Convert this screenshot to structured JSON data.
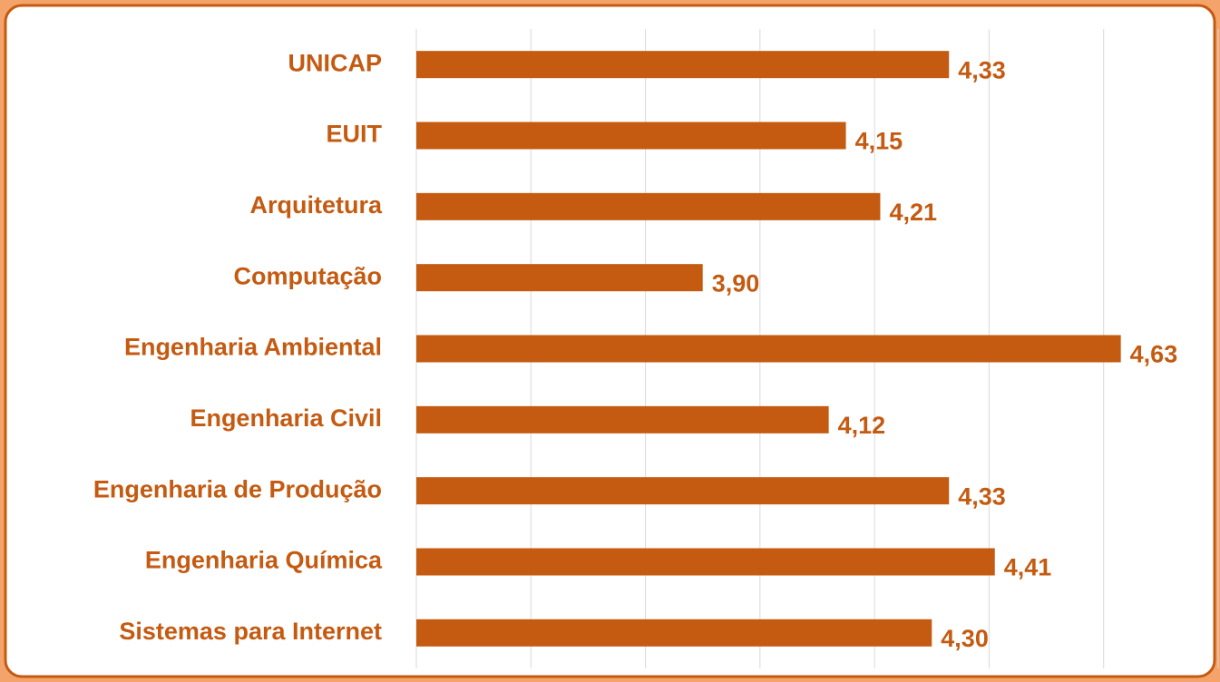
{
  "chart_data": {
    "type": "bar",
    "orientation": "horizontal",
    "categories": [
      "UNICAP",
      "EUIT",
      "Arquitetura",
      "Computação",
      "Engenharia Ambiental",
      "Engenharia Civil",
      "Engenharia de Produção",
      "Engenharia Química",
      "Sistemas para Internet"
    ],
    "values": [
      4.33,
      4.15,
      4.21,
      3.9,
      4.63,
      4.12,
      4.33,
      4.41,
      4.3
    ],
    "value_labels": [
      "4,33",
      "4,15",
      "4,21",
      "3,90",
      "4,63",
      "4,12",
      "4,33",
      "4,41",
      "4,30"
    ],
    "color": "#c55a11",
    "xlim": [
      3.4,
      4.8
    ],
    "xticks": [
      3.4,
      3.6,
      3.8,
      4.0,
      4.2,
      4.4,
      4.6,
      4.8
    ],
    "grid": true
  }
}
